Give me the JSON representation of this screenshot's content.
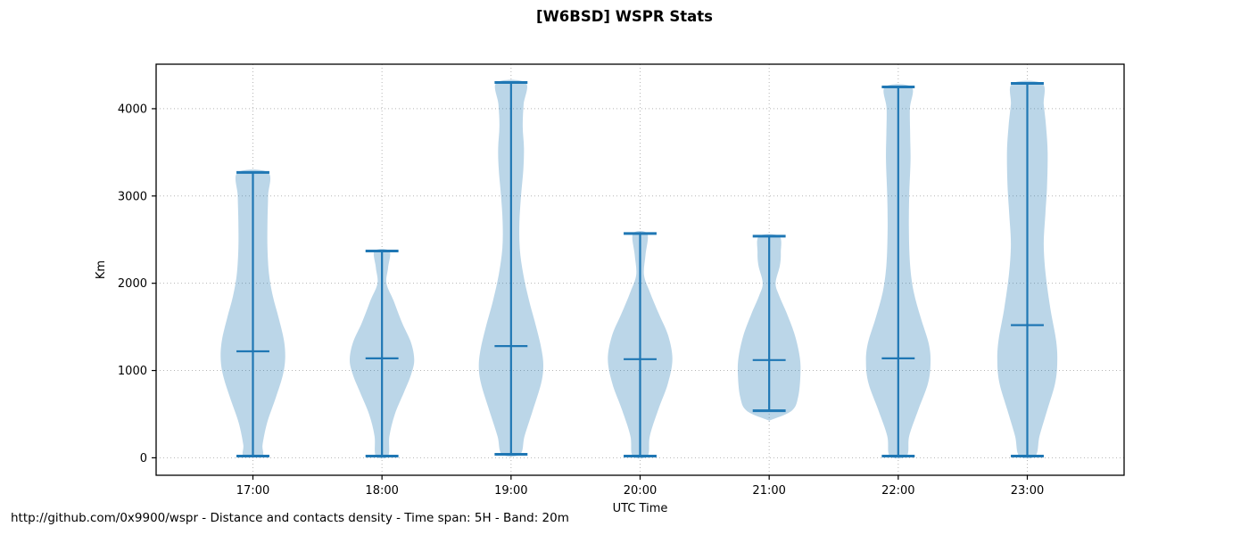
{
  "title": "[W6BSD] WSPR Stats",
  "footer": "http://github.com/0x9900/wspr - Distance and contacts density - Time span: 5H - Band: 20m",
  "chart_data": {
    "type": "violin",
    "title": "[W6BSD] WSPR Stats",
    "xlabel": "UTC Time",
    "ylabel": "Km",
    "caption": "http://github.com/0x9900/wspr - Distance and contacts density - Time span: 5H - Band: 20m",
    "categories": [
      "17:00",
      "18:00",
      "19:00",
      "20:00",
      "21:00",
      "22:00",
      "23:00"
    ],
    "yticks": [
      0,
      1000,
      2000,
      3000,
      4000
    ],
    "ylim": [
      -200,
      4510
    ],
    "xlim": [
      0.25,
      7.75
    ],
    "grid": "dotted horizontal and vertical",
    "legend": "none",
    "colors": {
      "line": "#1f77b4",
      "fill": "#1f77b4",
      "fill_opacity": 0.3,
      "grid": "#b5b5b5",
      "frame": "#000000"
    },
    "groups": [
      {
        "time": "17:00",
        "min": 20,
        "max": 3270,
        "median": 1220,
        "profile": [
          [
            20,
            0.28
          ],
          [
            150,
            0.3
          ],
          [
            400,
            0.44
          ],
          [
            700,
            0.72
          ],
          [
            950,
            0.93
          ],
          [
            1150,
            1.0
          ],
          [
            1350,
            0.96
          ],
          [
            1600,
            0.8
          ],
          [
            1850,
            0.62
          ],
          [
            2100,
            0.5
          ],
          [
            2400,
            0.45
          ],
          [
            2700,
            0.45
          ],
          [
            3000,
            0.47
          ],
          [
            3270,
            0.47
          ]
        ]
      },
      {
        "time": "18:00",
        "min": 20,
        "max": 2370,
        "median": 1140,
        "profile": [
          [
            20,
            0.19
          ],
          [
            250,
            0.23
          ],
          [
            500,
            0.4
          ],
          [
            750,
            0.68
          ],
          [
            950,
            0.9
          ],
          [
            1120,
            1.0
          ],
          [
            1320,
            0.9
          ],
          [
            1550,
            0.62
          ],
          [
            1800,
            0.36
          ],
          [
            2000,
            0.14
          ],
          [
            2180,
            0.19
          ],
          [
            2370,
            0.23
          ]
        ]
      },
      {
        "time": "19:00",
        "min": 40,
        "max": 4300,
        "median": 1280,
        "profile": [
          [
            40,
            0.28
          ],
          [
            250,
            0.42
          ],
          [
            550,
            0.68
          ],
          [
            850,
            0.93
          ],
          [
            1050,
            1.0
          ],
          [
            1250,
            0.94
          ],
          [
            1500,
            0.78
          ],
          [
            1800,
            0.56
          ],
          [
            2100,
            0.38
          ],
          [
            2400,
            0.27
          ],
          [
            2700,
            0.26
          ],
          [
            3000,
            0.31
          ],
          [
            3300,
            0.38
          ],
          [
            3550,
            0.4
          ],
          [
            3800,
            0.36
          ],
          [
            4050,
            0.39
          ],
          [
            4300,
            0.45
          ]
        ]
      },
      {
        "time": "20:00",
        "min": 20,
        "max": 2570,
        "median": 1130,
        "profile": [
          [
            20,
            0.23
          ],
          [
            250,
            0.3
          ],
          [
            550,
            0.56
          ],
          [
            850,
            0.86
          ],
          [
            1130,
            1.0
          ],
          [
            1400,
            0.87
          ],
          [
            1650,
            0.58
          ],
          [
            1900,
            0.3
          ],
          [
            2100,
            0.12
          ],
          [
            2330,
            0.17
          ],
          [
            2570,
            0.22
          ]
        ]
      },
      {
        "time": "21:00",
        "min": 540,
        "max": 2540,
        "median": 1120,
        "profile": [
          [
            430,
            0.03
          ],
          [
            540,
            0.7
          ],
          [
            700,
            0.9
          ],
          [
            950,
            0.97
          ],
          [
            1150,
            0.95
          ],
          [
            1400,
            0.8
          ],
          [
            1650,
            0.55
          ],
          [
            1850,
            0.32
          ],
          [
            2000,
            0.2
          ],
          [
            2200,
            0.33
          ],
          [
            2350,
            0.36
          ],
          [
            2540,
            0.31
          ]
        ]
      },
      {
        "time": "22:00",
        "min": 20,
        "max": 4250,
        "median": 1140,
        "profile": [
          [
            20,
            0.26
          ],
          [
            250,
            0.34
          ],
          [
            550,
            0.62
          ],
          [
            850,
            0.92
          ],
          [
            1080,
            1.0
          ],
          [
            1300,
            0.95
          ],
          [
            1600,
            0.7
          ],
          [
            1900,
            0.48
          ],
          [
            2200,
            0.37
          ],
          [
            2600,
            0.33
          ],
          [
            3000,
            0.34
          ],
          [
            3400,
            0.38
          ],
          [
            3700,
            0.37
          ],
          [
            4000,
            0.36
          ],
          [
            4250,
            0.41
          ]
        ]
      },
      {
        "time": "23:00",
        "min": 20,
        "max": 4290,
        "median": 1520,
        "profile": [
          [
            20,
            0.25
          ],
          [
            250,
            0.38
          ],
          [
            550,
            0.62
          ],
          [
            850,
            0.86
          ],
          [
            1100,
            0.93
          ],
          [
            1350,
            0.89
          ],
          [
            1700,
            0.72
          ],
          [
            2100,
            0.57
          ],
          [
            2450,
            0.51
          ],
          [
            2800,
            0.56
          ],
          [
            3100,
            0.61
          ],
          [
            3500,
            0.63
          ],
          [
            3800,
            0.58
          ],
          [
            4050,
            0.51
          ],
          [
            4290,
            0.46
          ]
        ]
      }
    ]
  }
}
